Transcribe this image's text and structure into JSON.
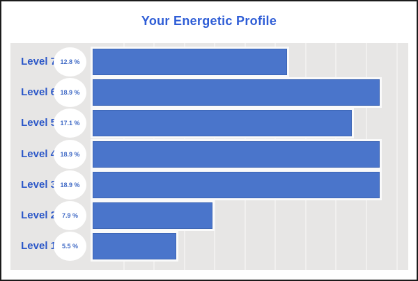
{
  "window": {
    "title": "Your Energetic Profile"
  },
  "chart_data": {
    "type": "bar",
    "orientation": "horizontal",
    "title": "Your Energetic Profile",
    "categories": [
      "Level 7",
      "Level 6",
      "Level 5",
      "Level 4",
      "Level 3",
      "Level 2",
      "Level 1"
    ],
    "values": [
      12.8,
      18.9,
      17.1,
      18.9,
      18.9,
      7.9,
      5.5
    ],
    "value_labels": [
      "12.8 %",
      "18.9 %",
      "17.1 %",
      "18.9 %",
      "18.9 %",
      "7.9 %",
      "5.5 %"
    ],
    "xlabel": "",
    "ylabel": "",
    "xlim": [
      0,
      20.8
    ],
    "grid": true,
    "gridline_step": 2,
    "legend": false,
    "colors": {
      "bar": "#4A75CB",
      "bar_border": "#3C65B5",
      "bar_halo": "#FAFAFA",
      "plot_background": "#E7E6E5",
      "gridline": "#F1F0EF",
      "title_text": "#2E5DD6",
      "label_text": "#2B57C8",
      "badge_background": "#FFFFFF",
      "badge_text": "#3F69C5",
      "frame_border": "#1B1B1B"
    }
  }
}
